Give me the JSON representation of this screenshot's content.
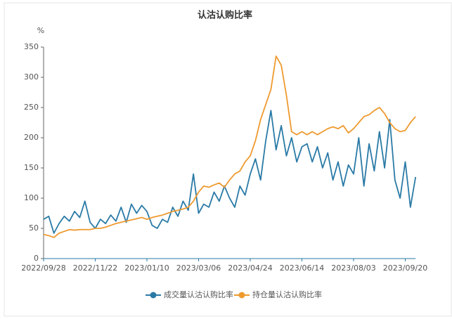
{
  "chart_data": {
    "type": "line",
    "title": "认沽认购比率",
    "y_unit": "%",
    "categories": [
      "2022/09/28",
      null,
      null,
      null,
      null,
      null,
      null,
      null,
      null,
      null,
      "2022/11/22",
      null,
      null,
      null,
      null,
      null,
      null,
      null,
      null,
      null,
      "2023/01/10",
      null,
      null,
      null,
      null,
      null,
      null,
      null,
      null,
      null,
      "2023/03/06",
      null,
      null,
      null,
      null,
      null,
      null,
      null,
      null,
      null,
      "2023/04/24",
      null,
      null,
      null,
      null,
      null,
      null,
      null,
      null,
      null,
      "2023/06/14",
      null,
      null,
      null,
      null,
      null,
      null,
      null,
      null,
      null,
      "2023/08/03",
      null,
      null,
      null,
      null,
      null,
      null,
      null,
      null,
      null,
      "2023/09/20",
      null,
      null
    ],
    "series": [
      {
        "name": "成交量认沽认购比率",
        "color": "#2a7aa6",
        "values": [
          65,
          70,
          42,
          58,
          70,
          62,
          78,
          68,
          95,
          60,
          50,
          65,
          58,
          72,
          62,
          85,
          60,
          90,
          75,
          88,
          78,
          55,
          50,
          65,
          60,
          85,
          70,
          95,
          80,
          140,
          75,
          90,
          85,
          110,
          95,
          120,
          100,
          85,
          120,
          105,
          140,
          165,
          130,
          195,
          245,
          180,
          220,
          170,
          200,
          160,
          185,
          190,
          160,
          185,
          150,
          175,
          130,
          160,
          120,
          155,
          140,
          200,
          120,
          190,
          145,
          210,
          150,
          230,
          130,
          100,
          160,
          85,
          135
        ]
      },
      {
        "name": "持仓量认沽认购比率",
        "color": "#ee9a2f",
        "values": [
          40,
          38,
          35,
          42,
          45,
          48,
          47,
          48,
          48,
          48,
          50,
          50,
          52,
          55,
          58,
          60,
          62,
          64,
          66,
          68,
          65,
          68,
          70,
          72,
          75,
          78,
          80,
          82,
          85,
          95,
          110,
          120,
          118,
          122,
          125,
          118,
          130,
          140,
          145,
          160,
          170,
          195,
          230,
          255,
          280,
          335,
          320,
          270,
          210,
          205,
          210,
          205,
          210,
          205,
          210,
          215,
          218,
          215,
          220,
          208,
          215,
          225,
          235,
          238,
          245,
          250,
          240,
          225,
          215,
          210,
          212,
          225,
          235
        ]
      }
    ],
    "ylim": [
      0,
      350
    ],
    "yticks": [
      0,
      50,
      100,
      150,
      200,
      250,
      300,
      350
    ],
    "legend": "bottom"
  }
}
